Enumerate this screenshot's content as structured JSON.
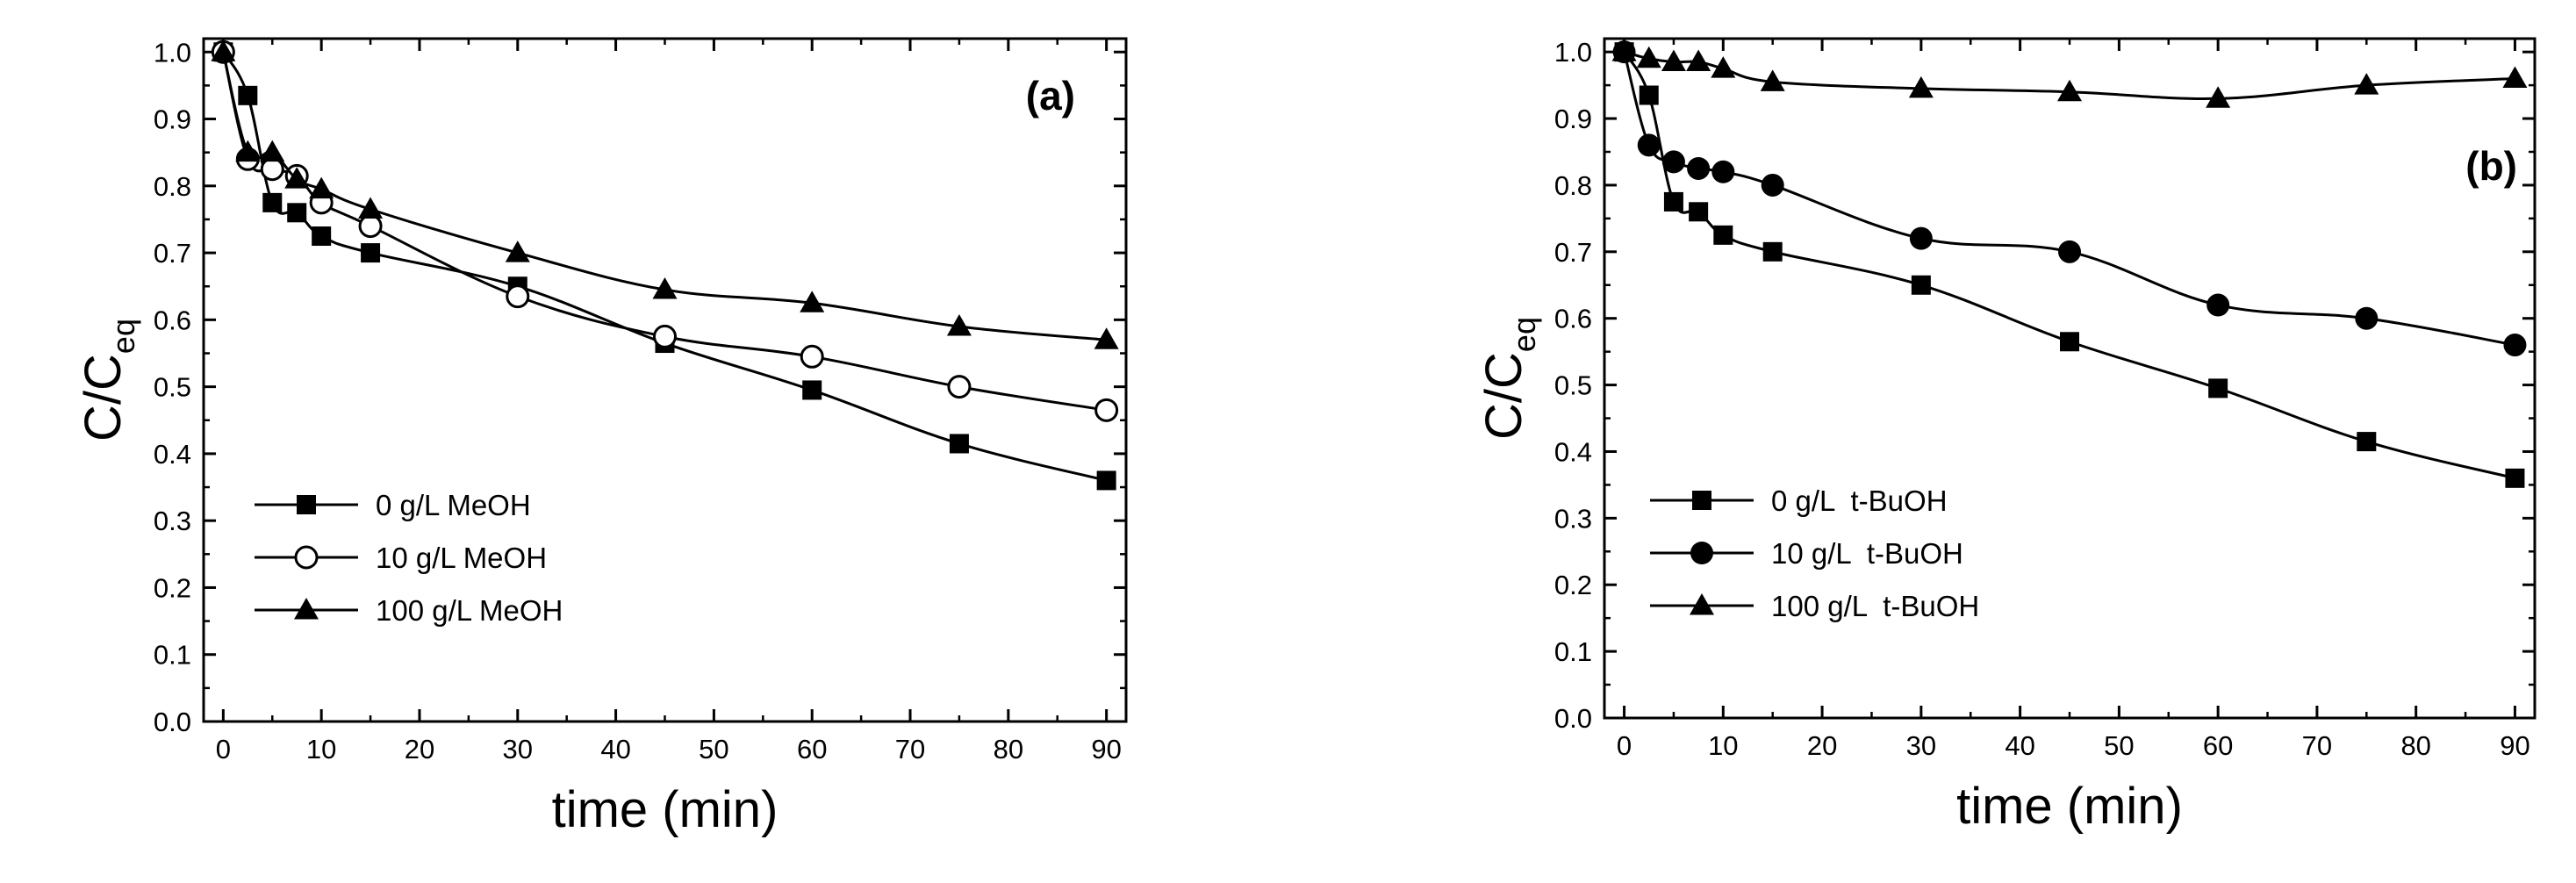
{
  "chart_data": [
    {
      "type": "line",
      "panel_label": "(a)",
      "xlabel": "time (min)",
      "ylabel_main": "C/C",
      "ylabel_sub": "eq",
      "xlim": [
        -2,
        92
      ],
      "ylim": [
        0.0,
        1.02
      ],
      "xticks": [
        "0",
        "10",
        "20",
        "30",
        "40",
        "50",
        "60",
        "70",
        "80",
        "90"
      ],
      "yticks": [
        "0.0",
        "0.1",
        "0.2",
        "0.3",
        "0.4",
        "0.5",
        "0.6",
        "0.7",
        "0.8",
        "0.9",
        "1.0"
      ],
      "legend_position": "bottom-left",
      "series": [
        {
          "name": "0 g/L MeOH",
          "marker": "square-filled",
          "x": [
            0,
            2.5,
            5,
            7.5,
            10,
            15,
            30,
            45,
            60,
            75,
            90
          ],
          "y": [
            1.0,
            0.935,
            0.775,
            0.76,
            0.725,
            0.7,
            0.65,
            0.565,
            0.495,
            0.415,
            0.36
          ]
        },
        {
          "name": "10 g/L MeOH",
          "marker": "circle-open",
          "x": [
            0,
            2.5,
            5,
            7.5,
            10,
            15,
            30,
            45,
            60,
            75,
            90
          ],
          "y": [
            1.0,
            0.84,
            0.825,
            0.815,
            0.775,
            0.74,
            0.635,
            0.575,
            0.545,
            0.5,
            0.465
          ]
        },
        {
          "name": "100 g/L MeOH",
          "marker": "triangle-filled",
          "x": [
            0,
            2.5,
            5,
            7.5,
            10,
            15,
            30,
            45,
            60,
            75,
            90
          ],
          "y": [
            1.0,
            0.85,
            0.85,
            0.81,
            0.795,
            0.765,
            0.7,
            0.645,
            0.625,
            0.59,
            0.57
          ]
        }
      ]
    },
    {
      "type": "line",
      "panel_label": "(b)",
      "xlabel": "time (min)",
      "ylabel_main": "C/C",
      "ylabel_sub": "eq",
      "xlim": [
        -2,
        92
      ],
      "ylim": [
        0.0,
        1.02
      ],
      "xticks": [
        "0",
        "10",
        "20",
        "30",
        "40",
        "50",
        "60",
        "70",
        "80",
        "90"
      ],
      "yticks": [
        "0.0",
        "0.1",
        "0.2",
        "0.3",
        "0.4",
        "0.5",
        "0.6",
        "0.7",
        "0.8",
        "0.9",
        "1.0"
      ],
      "legend_position": "bottom-left",
      "series": [
        {
          "name": "0 g/L  t-BuOH",
          "marker": "square-filled",
          "x": [
            0,
            2.5,
            5,
            7.5,
            10,
            15,
            30,
            45,
            60,
            75,
            90
          ],
          "y": [
            1.0,
            0.935,
            0.775,
            0.76,
            0.725,
            0.7,
            0.65,
            0.565,
            0.495,
            0.415,
            0.36
          ]
        },
        {
          "name": "10 g/L  t-BuOH",
          "marker": "circle-filled",
          "x": [
            0,
            2.5,
            5,
            7.5,
            10,
            15,
            30,
            45,
            60,
            75,
            90
          ],
          "y": [
            1.0,
            0.86,
            0.835,
            0.825,
            0.82,
            0.8,
            0.72,
            0.7,
            0.62,
            0.6,
            0.56
          ]
        },
        {
          "name": "100 g/L  t-BuOH",
          "marker": "triangle-filled",
          "x": [
            0,
            2.5,
            5,
            7.5,
            10,
            15,
            30,
            45,
            60,
            75,
            90
          ],
          "y": [
            1.0,
            0.99,
            0.985,
            0.985,
            0.975,
            0.955,
            0.945,
            0.94,
            0.93,
            0.95,
            0.96
          ]
        }
      ]
    }
  ]
}
